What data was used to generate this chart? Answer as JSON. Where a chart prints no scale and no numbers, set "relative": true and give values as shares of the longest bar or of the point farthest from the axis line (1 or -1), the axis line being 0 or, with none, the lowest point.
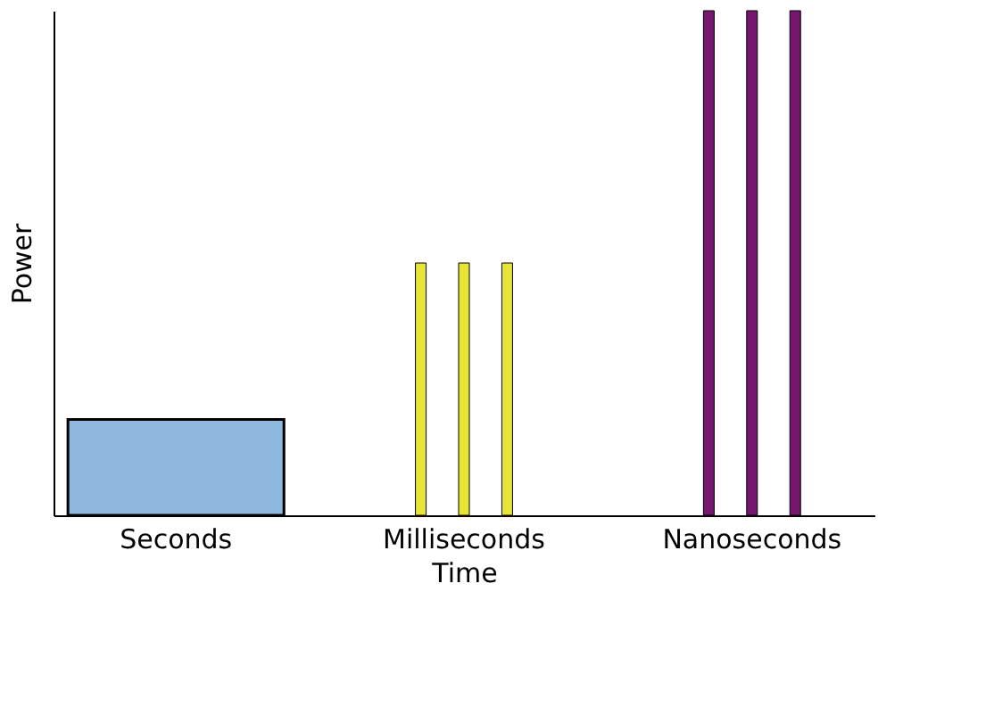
{
  "chart_data": {
    "type": "bar",
    "relative": true,
    "xlabel": "Time",
    "ylabel": "Power",
    "grid": false,
    "categories": [
      "Seconds",
      "Milliseconds",
      "Nanoseconds"
    ],
    "series": [
      {
        "color": "#8fb8de",
        "values": [
          0.19,
          null,
          null
        ]
      },
      {
        "colors": [
          null,
          "#e8e337",
          "#76166f"
        ],
        "values": [
          null,
          0.5,
          1
        ]
      },
      {
        "colors": [
          null,
          "#e8e337",
          "#76166f"
        ],
        "values": [
          null,
          0.5,
          1
        ]
      },
      {
        "colors": [
          null,
          "#e8e337",
          "#76166f"
        ],
        "values": [
          null,
          0.5,
          1
        ]
      }
    ]
  }
}
